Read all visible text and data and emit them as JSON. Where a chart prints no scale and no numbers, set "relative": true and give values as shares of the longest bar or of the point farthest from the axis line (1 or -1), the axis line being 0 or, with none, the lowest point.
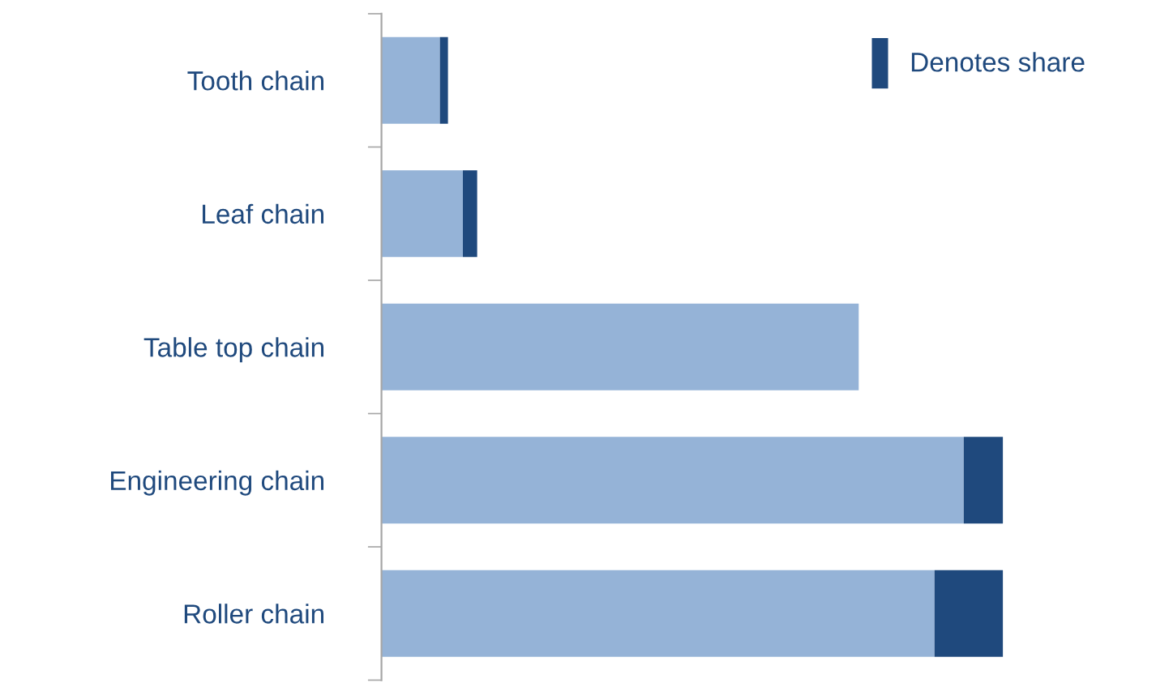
{
  "chart_data": {
    "type": "bar",
    "orientation": "horizontal",
    "stacked": true,
    "relative": true,
    "categories": [
      "Tooth chain",
      "Leaf chain",
      "Table top chain",
      "Engineering chain",
      "Roller chain"
    ],
    "series": [
      {
        "color": "#95b3d7",
        "values": [
          0.094,
          0.131,
          0.768,
          0.937,
          0.89
        ]
      },
      {
        "name": "Denotes share",
        "color": "#1f497d",
        "values": [
          0.013,
          0.023,
          0,
          0.063,
          0.11
        ]
      }
    ],
    "legend": "top right",
    "grid": false
  }
}
